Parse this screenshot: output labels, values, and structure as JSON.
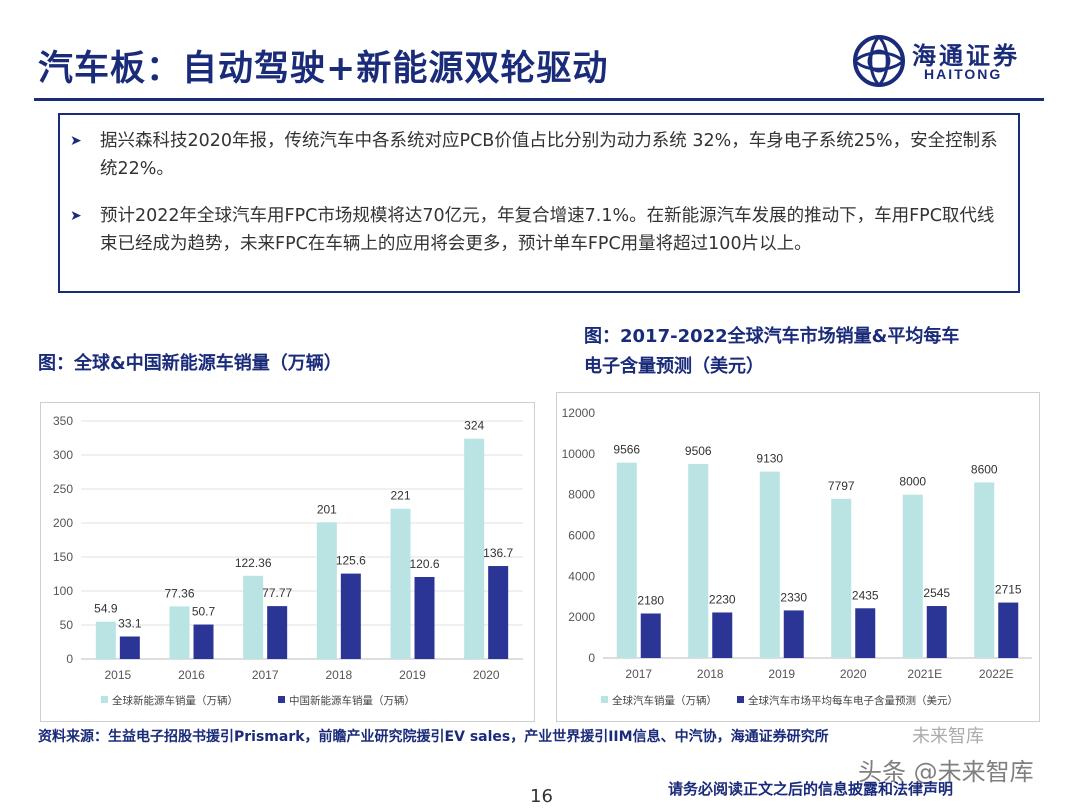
{
  "header": {
    "title": "汽车板：自动驾驶+新能源双轮驱动",
    "logo_cn": "海通证券",
    "logo_en": "HAITONG"
  },
  "bullets": [
    "据兴森科技2020年报，传统汽车中各系统对应PCB价值占比分别为动力系统 32%，车身电子系统25%，安全控制系统22%。",
    "预计2022年全球汽车用FPC市场规模将达70亿元，年复合增速7.1%。在新能源汽车发展的推动下，车用FPC取代线束已经成为趋势，未来FPC在车辆上的应用将会更多，预计单车FPC用量将超过100片以上。"
  ],
  "captions": {
    "left": "图：全球&中国新能源车销量（万辆）",
    "right_line1": "图：2017-2022全球汽车市场销量&平均每车",
    "right_line2": "电子含量预测（美元）"
  },
  "chart_data": [
    {
      "type": "bar",
      "categories": [
        "2015",
        "2016",
        "2017",
        "2018",
        "2019",
        "2020"
      ],
      "series": [
        {
          "name": "全球新能源车销量（万辆）",
          "values": [
            54.9,
            77.36,
            122.36,
            201,
            221,
            324
          ],
          "color": "#b9e4e3"
        },
        {
          "name": "中国新能源车销量（万辆）",
          "values": [
            33.1,
            50.7,
            77.77,
            125.6,
            120.6,
            136.7
          ],
          "color": "#2b3595"
        }
      ],
      "ylim": [
        0,
        350
      ],
      "yticks": [
        0,
        50,
        100,
        150,
        200,
        250,
        300,
        350
      ],
      "grid": true,
      "legend": "bottom"
    },
    {
      "type": "bar",
      "categories": [
        "2017",
        "2018",
        "2019",
        "2020",
        "2021E",
        "2022E"
      ],
      "series": [
        {
          "name": "全球汽车销量（万辆）",
          "values": [
            9566,
            9506,
            9130,
            7797,
            8000,
            8600
          ],
          "color": "#b9e4e3"
        },
        {
          "name": "全球汽车市场平均每车电子含量预测（美元）",
          "values": [
            2180,
            2230,
            2330,
            2435,
            2545,
            2715
          ],
          "color": "#2b3595"
        }
      ],
      "ylim": [
        0,
        12000
      ],
      "yticks": [
        0,
        2000,
        4000,
        6000,
        8000,
        10000,
        12000
      ],
      "grid": false,
      "legend": "bottom"
    }
  ],
  "footer": {
    "source": "资料来源：生益电子招股书援引Prismark，前瞻产业研究院援引EV sales，产业世界援引IIM信息、中汽协，海通证券研究所",
    "page": "16",
    "disclaimer": "请务必阅读正文之后的信息披露和法律声明",
    "watermark": "头条 @未来智库",
    "watermark2": "未来智库"
  }
}
